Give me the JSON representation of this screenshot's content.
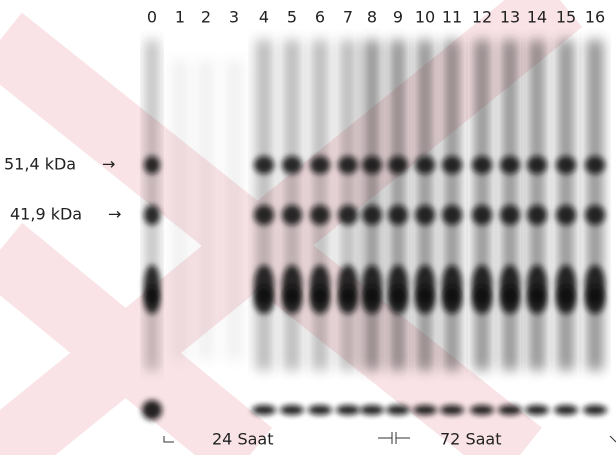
{
  "lanes": [
    "0",
    "1",
    "2",
    "3",
    "4",
    "5",
    "6",
    "7",
    "8",
    "9",
    "10",
    "11",
    "12",
    "13",
    "14",
    "15",
    "16"
  ],
  "markers": [
    "51,4 kDa",
    "41,9 kDa"
  ],
  "time_labels": [
    "24 Saat",
    "72 Saat"
  ]
}
